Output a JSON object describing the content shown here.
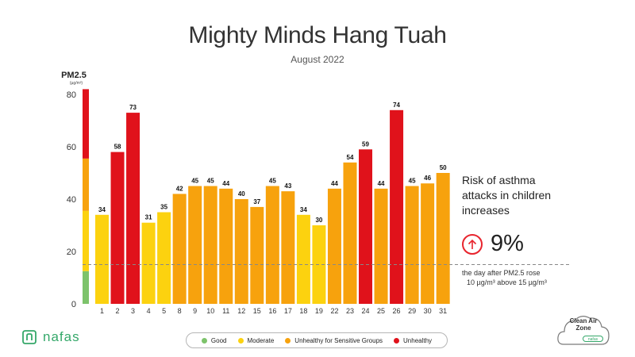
{
  "header": {
    "title": "Mighty Minds Hang Tuah",
    "subtitle": "August 2022"
  },
  "colors": {
    "good": "#7dc36b",
    "moderate": "#fcd20f",
    "sensitive": "#f7a20d",
    "unhealthy": "#e0121b",
    "accent": "#e8242d",
    "brand": "#35a86a"
  },
  "chart_data": {
    "type": "bar",
    "title": "Mighty Minds Hang Tuah",
    "subtitle": "August 2022",
    "ylabel": "PM2.5",
    "yunit": "(µg/m³)",
    "ylim": [
      0,
      82
    ],
    "yticks": [
      0,
      20,
      40,
      60,
      80
    ],
    "categories": [
      "1",
      "2",
      "3",
      "4",
      "5",
      "8",
      "9",
      "10",
      "11",
      "12",
      "15",
      "16",
      "17",
      "18",
      "19",
      "22",
      "23",
      "24",
      "25",
      "26",
      "29",
      "30",
      "31"
    ],
    "values": [
      34,
      58,
      73,
      31,
      35,
      42,
      45,
      45,
      44,
      40,
      37,
      45,
      43,
      34,
      30,
      44,
      54,
      59,
      44,
      74,
      45,
      46,
      50
    ],
    "reference_line": 15,
    "category_bands": [
      {
        "from": 0,
        "to": 12.5,
        "level": "good"
      },
      {
        "from": 12.5,
        "to": 35.5,
        "level": "moderate"
      },
      {
        "from": 35.5,
        "to": 55.5,
        "level": "sensitive"
      },
      {
        "from": 55.5,
        "to": 82,
        "level": "unhealthy"
      }
    ],
    "grid": false
  },
  "side_panel": {
    "heading": "Risk of asthma attacks in children increases",
    "risk_value": "9%",
    "note_line1": "the day after PM2.5 rose",
    "note_line2": "10 µg/m³ above 15 µg/m³"
  },
  "legend": {
    "items": [
      {
        "label": "Good",
        "level": "good"
      },
      {
        "label": "Moderate",
        "level": "moderate"
      },
      {
        "label": "Unhealthy for Sensitive Groups",
        "level": "sensitive"
      },
      {
        "label": "Unhealthy",
        "level": "unhealthy"
      }
    ]
  },
  "logo": {
    "text": "nafas"
  },
  "badge": {
    "line1": "Clean Air",
    "line2": "Zone",
    "pill": "nafas"
  }
}
